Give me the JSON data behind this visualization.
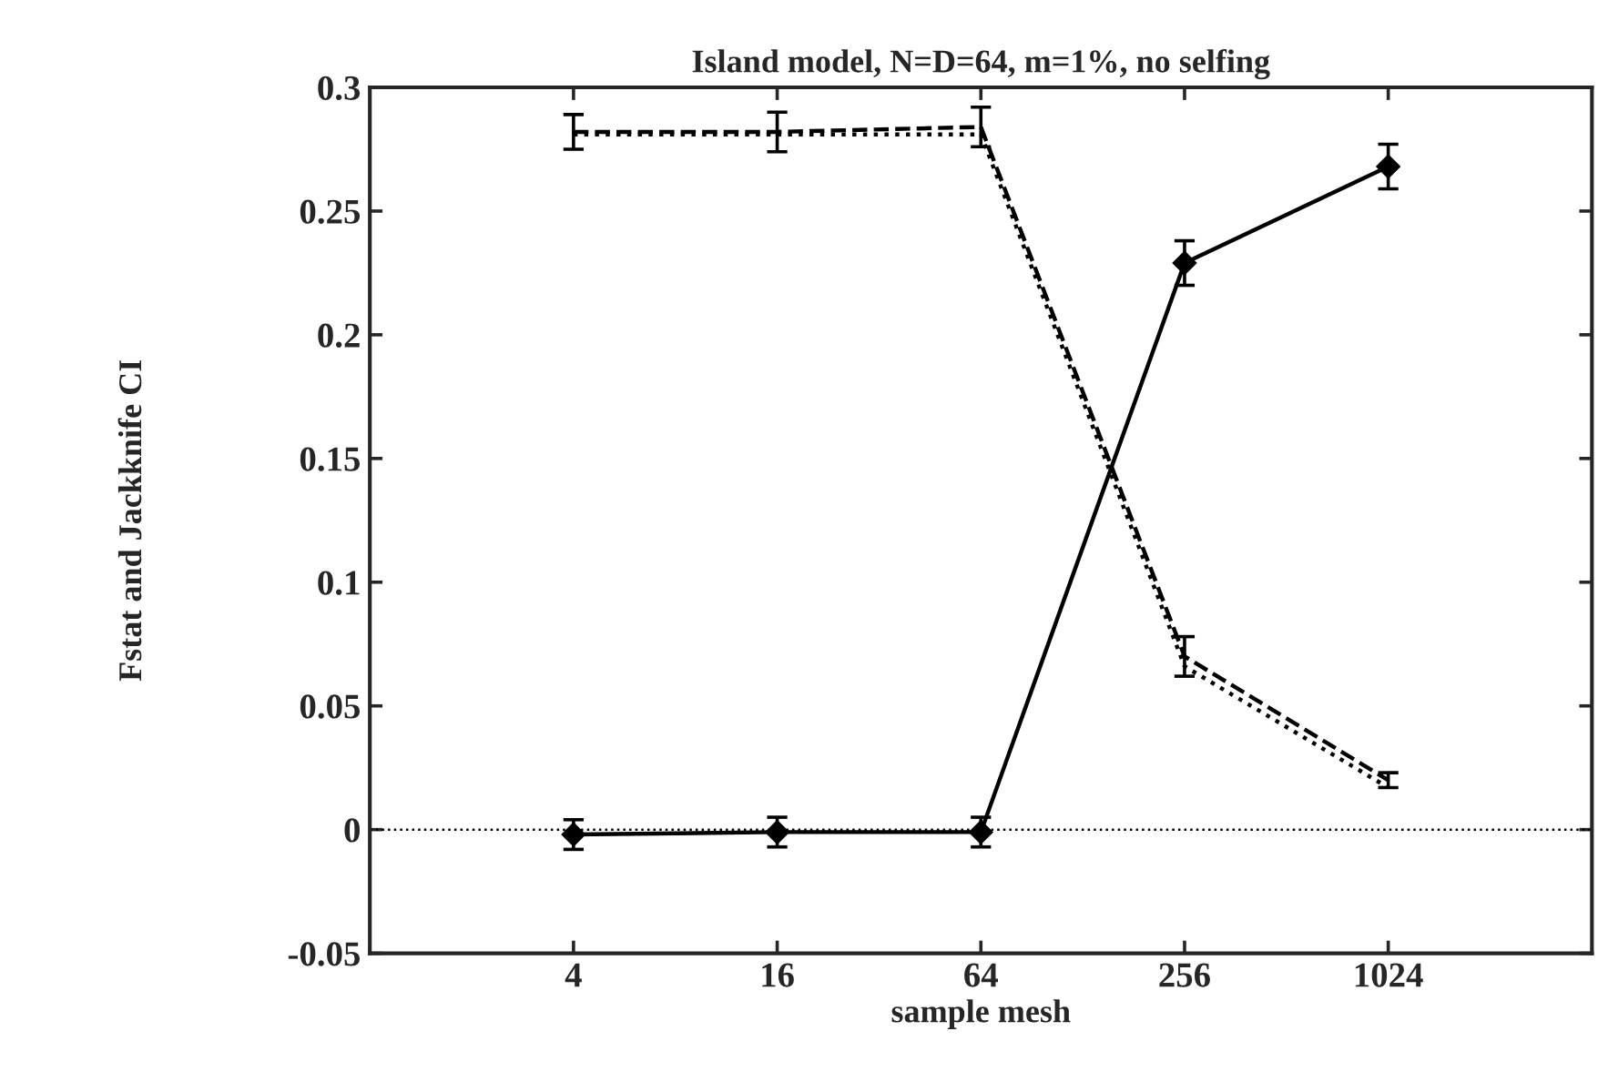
{
  "chart_data": {
    "type": "line",
    "title": "Island model, N=D=64, m=1%, no selfing",
    "xlabel": "sample mesh",
    "ylabel": "Fstat and Jackknife CI",
    "log": "x",
    "xlim": [
      1,
      4096
    ],
    "xticks": [
      4,
      16,
      64,
      256,
      1024
    ],
    "ylim": [
      -0.05,
      0.3
    ],
    "yticks": [
      -0.05,
      0,
      0.05,
      0.1,
      0.15,
      0.2,
      0.25,
      0.3
    ],
    "grid": false,
    "legend": false,
    "x": [
      4,
      16,
      64,
      256,
      1024
    ],
    "series": [
      {
        "color": "#000000",
        "values": [
          -0.002,
          -0.001,
          -0.001,
          0.229,
          0.268
        ],
        "errors": [
          0.006,
          0.006,
          0.006,
          0.009,
          0.009
        ],
        "marker": "diamond",
        "line_style": "solid"
      },
      {
        "color": "#000000",
        "values": [
          0.282,
          0.282,
          0.284,
          0.07,
          0.02
        ],
        "errors": [
          0.007,
          0.008,
          0.008,
          0.008,
          0.003
        ],
        "marker": "none",
        "line_style": "dashed"
      },
      {
        "color": "#000000",
        "values": [
          0.281,
          0.281,
          0.281,
          0.066,
          0.017
        ],
        "marker": "none",
        "line_style": "dotted"
      }
    ],
    "ref_lines": [
      {
        "axis": "y",
        "value": 0,
        "color": "#000000",
        "line_style": "dotted"
      }
    ]
  }
}
